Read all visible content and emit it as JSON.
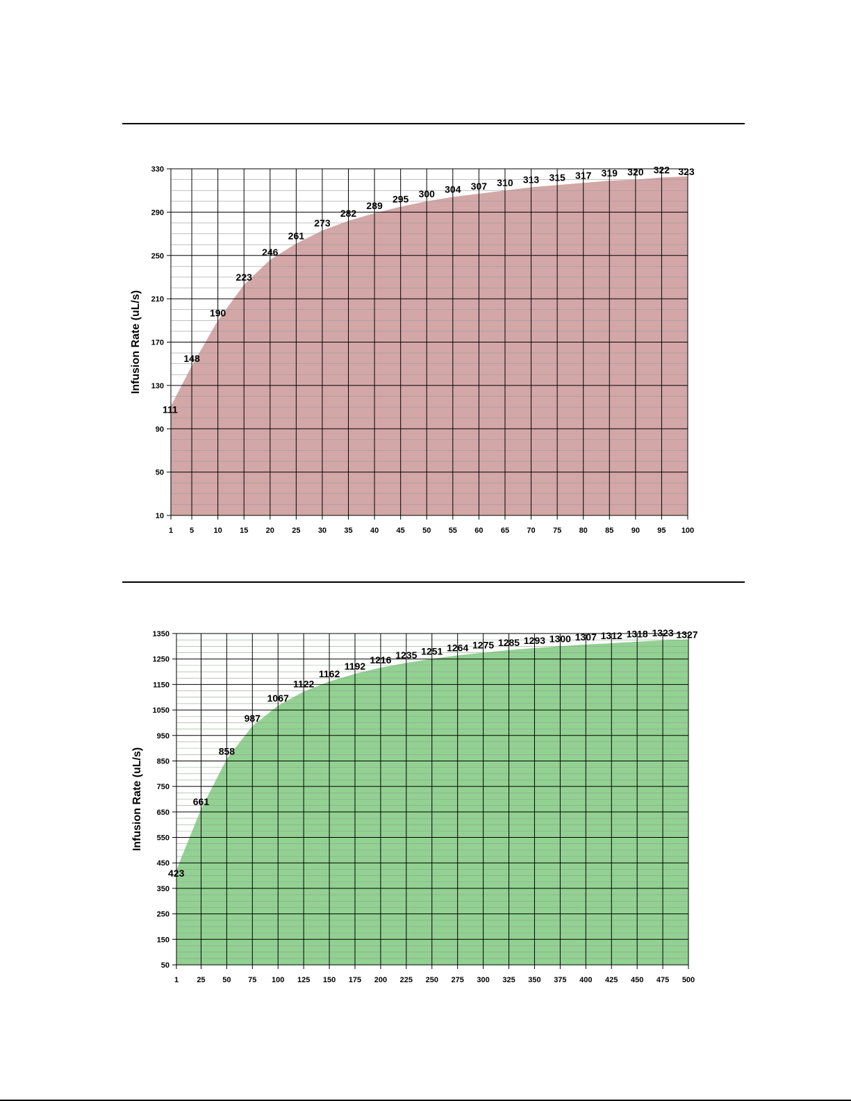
{
  "chart_data": [
    {
      "type": "area",
      "title": "",
      "xlabel": "",
      "ylabel": "Infusion Rate (uL/s)",
      "xlim": [
        1,
        100
      ],
      "ylim": [
        10,
        330
      ],
      "x_ticks": [
        "1",
        "5",
        "10",
        "15",
        "20",
        "25",
        "30",
        "35",
        "40",
        "45",
        "50",
        "55",
        "60",
        "65",
        "70",
        "75",
        "80",
        "85",
        "90",
        "95",
        "100"
      ],
      "y_ticks": [
        "10",
        "50",
        "90",
        "130",
        "170",
        "210",
        "250",
        "290",
        "330"
      ],
      "x": [
        1,
        5,
        10,
        15,
        20,
        25,
        30,
        35,
        40,
        45,
        50,
        55,
        60,
        65,
        70,
        75,
        80,
        85,
        90,
        95,
        100
      ],
      "values": [
        111,
        148,
        190,
        223,
        246,
        261,
        273,
        282,
        289,
        295,
        300,
        304,
        307,
        310,
        313,
        315,
        317,
        319,
        320,
        322,
        323
      ],
      "grid": true,
      "colors": {
        "fill": "#d3a7a7",
        "grid_major": "#000000",
        "grid_minor": "#9a9a9a"
      }
    },
    {
      "type": "area",
      "title": "",
      "xlabel": "",
      "ylabel": "Infusion Rate (uL/s)",
      "xlim": [
        1,
        500
      ],
      "ylim": [
        50,
        1350
      ],
      "x_ticks": [
        "1",
        "25",
        "50",
        "75",
        "100",
        "125",
        "150",
        "175",
        "200",
        "225",
        "250",
        "275",
        "300",
        "325",
        "350",
        "375",
        "400",
        "425",
        "450",
        "475",
        "500"
      ],
      "y_ticks": [
        "50",
        "150",
        "250",
        "350",
        "450",
        "550",
        "650",
        "750",
        "850",
        "950",
        "1050",
        "1150",
        "1250",
        "1350"
      ],
      "x": [
        1,
        25,
        50,
        75,
        100,
        125,
        150,
        175,
        200,
        225,
        250,
        275,
        300,
        325,
        350,
        375,
        400,
        425,
        450,
        475,
        500
      ],
      "values": [
        423,
        661,
        858,
        987,
        1067,
        1122,
        1162,
        1192,
        1216,
        1235,
        1251,
        1264,
        1275,
        1285,
        1293,
        1300,
        1307,
        1312,
        1318,
        1323,
        1327
      ],
      "grid": true,
      "colors": {
        "fill": "#92d192",
        "grid_major": "#000000",
        "grid_minor": "#8fa48f"
      }
    }
  ]
}
